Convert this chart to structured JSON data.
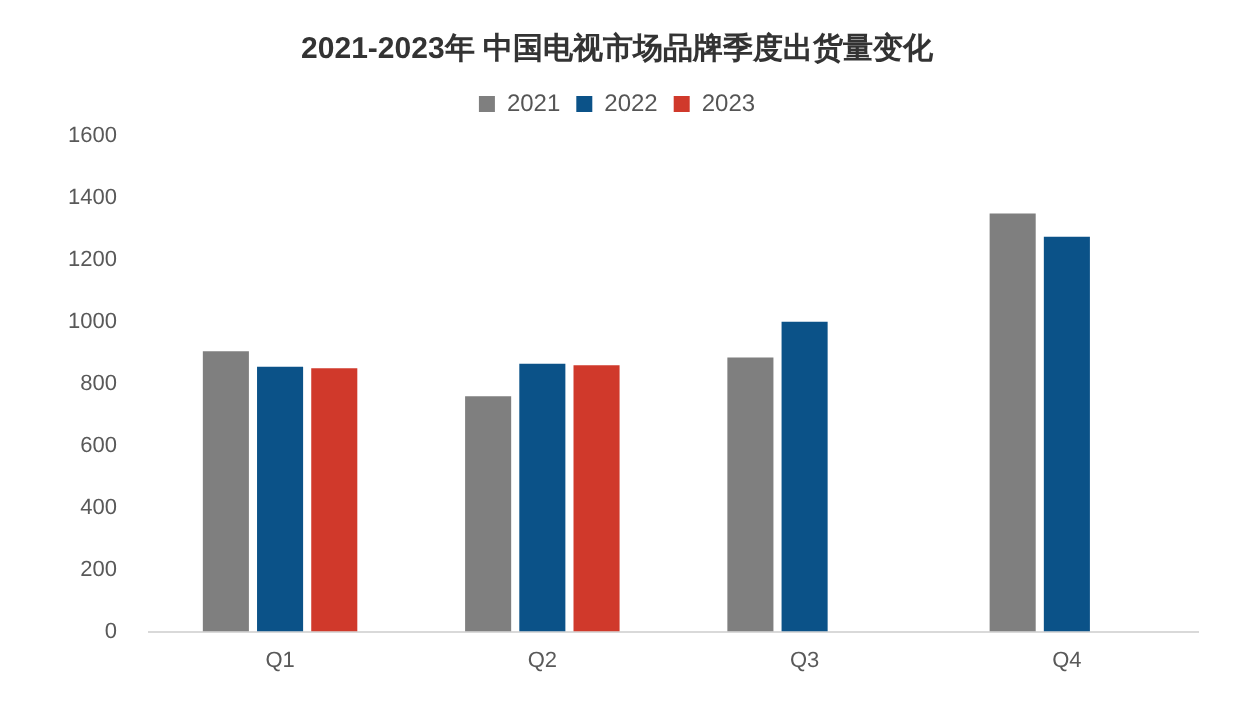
{
  "chart_data": {
    "type": "bar",
    "title": "2021-2023年 中国电视市场品牌季度出货量变化",
    "categories": [
      "Q1",
      "Q2",
      "Q3",
      "Q4"
    ],
    "series": [
      {
        "name": "2021",
        "color": "#7f7f7f",
        "values": [
          905,
          760,
          885,
          1350
        ]
      },
      {
        "name": "2022",
        "color": "#0b5288",
        "values": [
          855,
          865,
          1000,
          1275
        ]
      },
      {
        "name": "2023",
        "color": "#d0392b",
        "values": [
          850,
          860,
          null,
          null
        ]
      }
    ],
    "ylim": [
      0,
      1600
    ],
    "yticks": [
      0,
      200,
      400,
      600,
      800,
      1000,
      1200,
      1400,
      1600
    ],
    "grid": false,
    "legend": "top"
  }
}
